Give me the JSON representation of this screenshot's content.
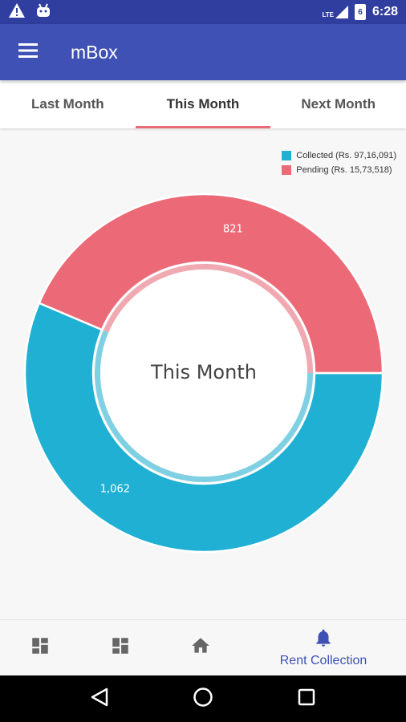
{
  "status_bar": {
    "time": "6:28",
    "network": "LTE",
    "battery_level": "6",
    "icons": [
      "warning-icon",
      "android-icon",
      "lte-signal-icon",
      "battery-icon"
    ]
  },
  "app_bar": {
    "title": "mBox"
  },
  "tabs": [
    {
      "label": "Last Month",
      "active": false
    },
    {
      "label": "This Month",
      "active": true
    },
    {
      "label": "Next Month",
      "active": false
    }
  ],
  "chart_data": {
    "type": "pie",
    "center_label": "This Month",
    "legend_position": "top-right",
    "series": [
      {
        "name": "Collected (Rs. 97,16,091)",
        "value": 1062,
        "label": "1,062",
        "color": "#1fb0d4"
      },
      {
        "name": "Pending (Rs. 15,73,518)",
        "value": 821,
        "label": "821",
        "color": "#ec6a78"
      }
    ]
  },
  "bottom_nav": {
    "items": [
      {
        "icon": "dashboard-icon",
        "label": ""
      },
      {
        "icon": "dashboard-icon",
        "label": ""
      },
      {
        "icon": "home-icon",
        "label": ""
      },
      {
        "icon": "bell-icon",
        "label": "Rent Collection",
        "active": true
      }
    ]
  },
  "colors": {
    "primary": "#3f51b5",
    "primary_dark": "#303f9f",
    "accent": "#ec6a78",
    "collected": "#1fb0d4",
    "pending": "#ec6a78"
  }
}
